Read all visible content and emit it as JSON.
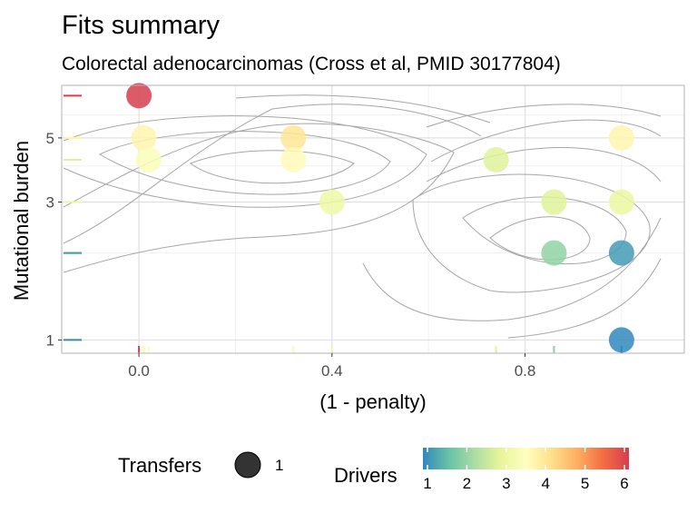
{
  "chart_data": {
    "type": "scatter",
    "title": "Fits summary",
    "subtitle": "Colorectal adenocarcinomas (Cross et al, PMID 30177804)",
    "xlabel": "(1 - penalty)",
    "ylabel": "Mutational burden",
    "xlim": [
      -0.16,
      1.13
    ],
    "ylim": [
      0.9,
      7.6
    ],
    "y_scale": "log",
    "x_ticks": [
      0.0,
      0.4,
      0.8
    ],
    "x_tick_labels": [
      "0.0",
      "0.4",
      "0.8"
    ],
    "y_ticks": [
      1,
      3,
      5
    ],
    "y_tick_labels": [
      "1",
      "3",
      "5"
    ],
    "grid": true,
    "points": [
      {
        "x": 0.0,
        "y": 7.0,
        "drivers": 6
      },
      {
        "x": 0.01,
        "y": 5.0,
        "drivers": 3.7
      },
      {
        "x": 0.02,
        "y": 4.2,
        "drivers": 3.4
      },
      {
        "x": 0.32,
        "y": 5.0,
        "drivers": 4.0
      },
      {
        "x": 0.32,
        "y": 4.2,
        "drivers": 3.6
      },
      {
        "x": 0.4,
        "y": 3.0,
        "drivers": 3.1
      },
      {
        "x": 0.74,
        "y": 4.2,
        "drivers": 2.8
      },
      {
        "x": 0.86,
        "y": 3.0,
        "drivers": 2.8
      },
      {
        "x": 0.86,
        "y": 2.0,
        "drivers": 2.0
      },
      {
        "x": 1.0,
        "y": 5.0,
        "drivers": 3.7
      },
      {
        "x": 1.0,
        "y": 3.0,
        "drivers": 3.0
      },
      {
        "x": 1.0,
        "y": 2.0,
        "drivers": 1.2
      },
      {
        "x": 1.0,
        "y": 1.0,
        "drivers": 1.0
      }
    ],
    "legend": {
      "position": "bottom",
      "size_title": "Transfers",
      "size_label": "1",
      "color_title": "Drivers",
      "color_ticks": [
        "1",
        "2",
        "3",
        "4",
        "5",
        "6"
      ],
      "color_range": [
        1,
        6
      ]
    },
    "palette": [
      "#3288bd",
      "#66c2a5",
      "#abdda4",
      "#e6f598",
      "#ffffbf",
      "#fee08b",
      "#fdae61",
      "#f46d43",
      "#d53e4f"
    ],
    "contour_color": "#a6a6a6"
  }
}
